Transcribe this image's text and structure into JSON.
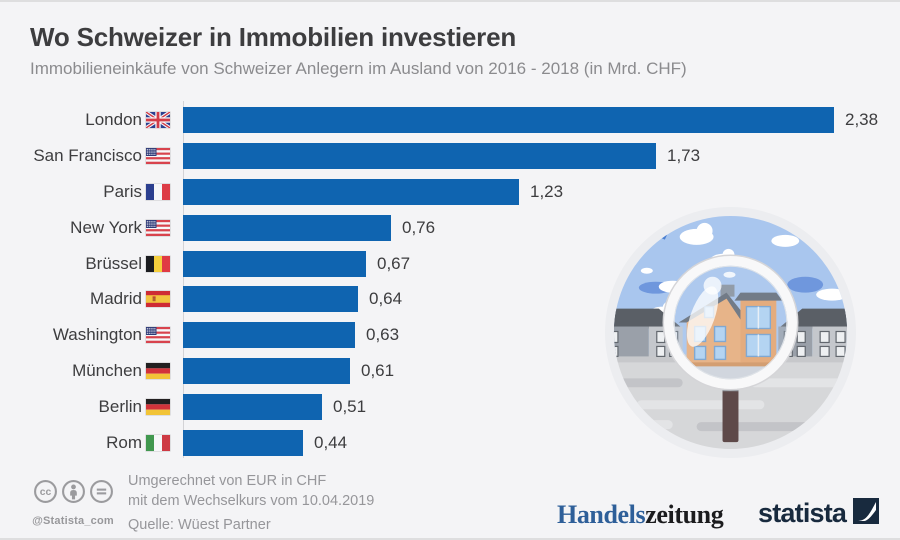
{
  "header": {
    "title": "Wo Schweizer in Immobilien investieren",
    "subtitle": "Immobilieneinkäufe von Schweizer Anlegern im Ausland von 2016 - 2018 (in Mrd. CHF)"
  },
  "chart_data": {
    "type": "bar",
    "orientation": "horizontal",
    "title": "Wo Schweizer in Immobilien investieren",
    "unit": "Mrd. CHF",
    "categories": [
      "London",
      "San Francisco",
      "Paris",
      "New York",
      "Brüssel",
      "Madrid",
      "Washington",
      "München",
      "Berlin",
      "Rom"
    ],
    "country_flags": [
      "gb",
      "us",
      "fr",
      "us",
      "be",
      "es",
      "us",
      "de",
      "de",
      "it"
    ],
    "values": [
      2.38,
      1.73,
      1.23,
      0.76,
      0.67,
      0.64,
      0.63,
      0.61,
      0.51,
      0.44
    ],
    "value_labels": [
      "2,38",
      "1,73",
      "1,23",
      "0,76",
      "0,67",
      "0,64",
      "0,63",
      "0,61",
      "0,51",
      "0,44"
    ],
    "xlim": [
      0,
      2.6
    ],
    "grid": false,
    "legend": false,
    "bar_color": "#0f64b0"
  },
  "footer": {
    "license_icons": [
      "cc-icon",
      "attribution-icon",
      "no-derivatives-icon"
    ],
    "handle": "@Statista_com",
    "note_line1": "Umgerechnet von EUR in CHF",
    "note_line2": "mit dem Wechselkurs vom 10.04.2019",
    "source": "Quelle: Wüest Partner",
    "publisher_logo_part1": "Handels",
    "publisher_logo_part2": "zeitung",
    "brand_logo_text": "statista"
  },
  "illustration": {
    "name": "houses-under-magnifier-illustration"
  },
  "colors": {
    "background": "#f4f4f6",
    "bar": "#0f64b0",
    "title_text": "#3d3d3f",
    "subtitle_text": "#8b8b8e",
    "footer_text": "#96969a",
    "publisher_blue": "#2e5f99",
    "brand_navy": "#182a3e"
  }
}
